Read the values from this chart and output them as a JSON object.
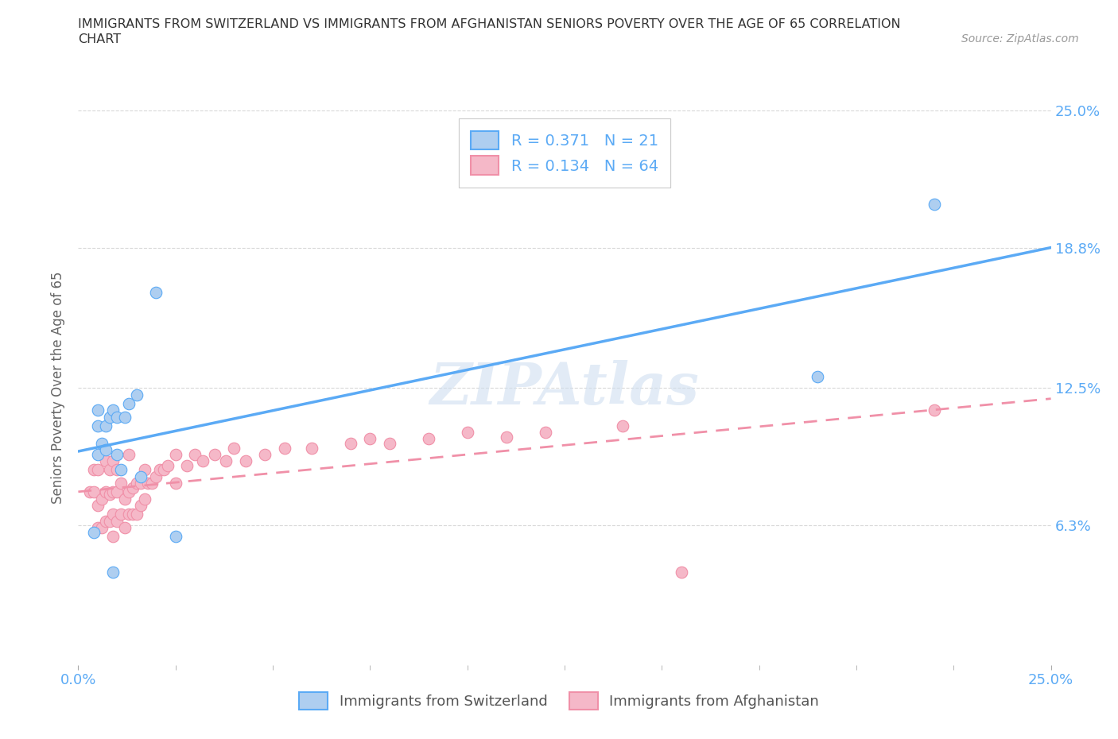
{
  "title_line1": "IMMIGRANTS FROM SWITZERLAND VS IMMIGRANTS FROM AFGHANISTAN SENIORS POVERTY OVER THE AGE OF 65 CORRELATION",
  "title_line2": "CHART",
  "source_text": "Source: ZipAtlas.com",
  "ylabel": "Seniors Poverty Over the Age of 65",
  "xmin": 0.0,
  "xmax": 0.25,
  "ymin": 0.0,
  "ymax": 0.25,
  "ytick_labels": [
    "6.3%",
    "12.5%",
    "18.8%",
    "25.0%"
  ],
  "ytick_values": [
    0.063,
    0.125,
    0.188,
    0.25
  ],
  "watermark": "ZIPAtlas",
  "switzerland_color": "#aecef0",
  "afghanistan_color": "#f5b8c8",
  "switzerland_line_color": "#5baaf5",
  "afghanistan_line_color": "#f090a8",
  "R_switzerland": 0.371,
  "N_switzerland": 21,
  "R_afghanistan": 0.134,
  "N_afghanistan": 64,
  "legend_label_1": "Immigrants from Switzerland",
  "legend_label_2": "Immigrants from Afghanistan",
  "switzerland_x": [
    0.004,
    0.005,
    0.005,
    0.005,
    0.006,
    0.007,
    0.007,
    0.008,
    0.009,
    0.009,
    0.01,
    0.01,
    0.011,
    0.012,
    0.013,
    0.015,
    0.016,
    0.02,
    0.025,
    0.19,
    0.22
  ],
  "switzerland_y": [
    0.06,
    0.095,
    0.108,
    0.115,
    0.1,
    0.097,
    0.108,
    0.112,
    0.042,
    0.115,
    0.095,
    0.112,
    0.088,
    0.112,
    0.118,
    0.122,
    0.085,
    0.168,
    0.058,
    0.13,
    0.208
  ],
  "afghanistan_x": [
    0.003,
    0.004,
    0.004,
    0.005,
    0.005,
    0.005,
    0.006,
    0.006,
    0.007,
    0.007,
    0.007,
    0.008,
    0.008,
    0.008,
    0.009,
    0.009,
    0.009,
    0.009,
    0.01,
    0.01,
    0.01,
    0.011,
    0.011,
    0.012,
    0.012,
    0.013,
    0.013,
    0.013,
    0.014,
    0.014,
    0.015,
    0.015,
    0.016,
    0.016,
    0.017,
    0.017,
    0.018,
    0.019,
    0.02,
    0.021,
    0.022,
    0.023,
    0.025,
    0.025,
    0.028,
    0.03,
    0.032,
    0.035,
    0.038,
    0.04,
    0.043,
    0.048,
    0.053,
    0.06,
    0.07,
    0.075,
    0.08,
    0.09,
    0.1,
    0.11,
    0.12,
    0.14,
    0.155,
    0.22
  ],
  "afghanistan_y": [
    0.078,
    0.078,
    0.088,
    0.062,
    0.072,
    0.088,
    0.062,
    0.075,
    0.065,
    0.078,
    0.092,
    0.065,
    0.077,
    0.088,
    0.058,
    0.068,
    0.078,
    0.092,
    0.065,
    0.078,
    0.088,
    0.068,
    0.082,
    0.062,
    0.075,
    0.068,
    0.078,
    0.095,
    0.068,
    0.08,
    0.068,
    0.082,
    0.072,
    0.082,
    0.075,
    0.088,
    0.082,
    0.082,
    0.085,
    0.088,
    0.088,
    0.09,
    0.082,
    0.095,
    0.09,
    0.095,
    0.092,
    0.095,
    0.092,
    0.098,
    0.092,
    0.095,
    0.098,
    0.098,
    0.1,
    0.102,
    0.1,
    0.102,
    0.105,
    0.103,
    0.105,
    0.108,
    0.042,
    0.115
  ],
  "background_color": "#ffffff",
  "grid_color": "#d8d8d8"
}
